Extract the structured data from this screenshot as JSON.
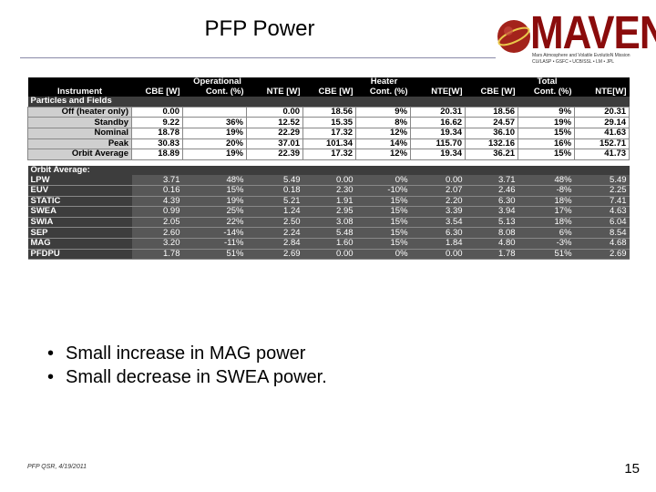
{
  "slide": {
    "title": "PFP Power",
    "logo_word": "MAVEN",
    "logo_sub_line1": "Mars Atmosphere and Volatile EvolutioN Mission",
    "logo_sub_line2": "CU/LASP • GSFC • UCB/SSL • LM • JPL",
    "bullets": [
      "Small increase in MAG power",
      "Small decrease in SWEA power."
    ],
    "footer": "PFP QSR, 4/19/2011",
    "page_number": "15"
  },
  "table": {
    "group_headers": [
      "Operational",
      "Heater",
      "Total"
    ],
    "col_headers": [
      "Instrument",
      "CBE [W]",
      "Cont. (%)",
      "NTE [W]",
      "CBE [W]",
      "Cont. (%)",
      "NTE[W]",
      "CBE [W]",
      "Cont. (%)",
      "NTE[W]"
    ],
    "section1_label": "Particles and Fields",
    "pf_rows": [
      {
        "label": "Off (heater only)",
        "cells": [
          "0.00",
          "",
          "0.00",
          "18.56",
          "9%",
          "20.31",
          "18.56",
          "9%",
          "20.31"
        ]
      },
      {
        "label": "Standby",
        "cells": [
          "9.22",
          "36%",
          "12.52",
          "15.35",
          "8%",
          "16.62",
          "24.57",
          "19%",
          "29.14"
        ]
      },
      {
        "label": "Nominal",
        "cells": [
          "18.78",
          "19%",
          "22.29",
          "17.32",
          "12%",
          "19.34",
          "36.10",
          "15%",
          "41.63"
        ]
      },
      {
        "label": "Peak",
        "cells": [
          "30.83",
          "20%",
          "37.01",
          "101.34",
          "14%",
          "115.70",
          "132.16",
          "16%",
          "152.71"
        ]
      },
      {
        "label": "Orbit Average",
        "cells": [
          "18.89",
          "19%",
          "22.39",
          "17.32",
          "12%",
          "19.34",
          "36.21",
          "15%",
          "41.73"
        ]
      }
    ],
    "section2_label": "Orbit Average:",
    "oa_rows": [
      {
        "label": "LPW",
        "cells": [
          "3.71",
          "48%",
          "5.49",
          "0.00",
          "0%",
          "0.00",
          "3.71",
          "48%",
          "5.49"
        ]
      },
      {
        "label": "EUV",
        "cells": [
          "0.16",
          "15%",
          "0.18",
          "2.30",
          "-10%",
          "2.07",
          "2.46",
          "-8%",
          "2.25"
        ]
      },
      {
        "label": "STATIC",
        "cells": [
          "4.39",
          "19%",
          "5.21",
          "1.91",
          "15%",
          "2.20",
          "6.30",
          "18%",
          "7.41"
        ]
      },
      {
        "label": "SWEA",
        "cells": [
          "0.99",
          "25%",
          "1.24",
          "2.95",
          "15%",
          "3.39",
          "3.94",
          "17%",
          "4.63"
        ]
      },
      {
        "label": "SWIA",
        "cells": [
          "2.05",
          "22%",
          "2.50",
          "3.08",
          "15%",
          "3.54",
          "5.13",
          "18%",
          "6.04"
        ]
      },
      {
        "label": "SEP",
        "cells": [
          "2.60",
          "-14%",
          "2.24",
          "5.48",
          "15%",
          "6.30",
          "8.08",
          "6%",
          "8.54"
        ]
      },
      {
        "label": "MAG",
        "cells": [
          "3.20",
          "-11%",
          "2.84",
          "1.60",
          "15%",
          "1.84",
          "4.80",
          "-3%",
          "4.68"
        ]
      },
      {
        "label": "PFDPU",
        "cells": [
          "1.78",
          "51%",
          "2.69",
          "0.00",
          "0%",
          "0.00",
          "1.78",
          "51%",
          "2.69"
        ]
      }
    ]
  }
}
